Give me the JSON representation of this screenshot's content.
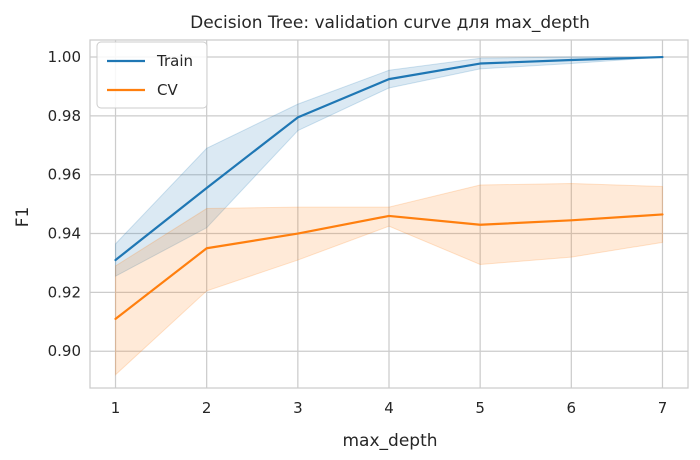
{
  "chart_data": {
    "type": "line",
    "title": "Decision Tree: validation curve для max_depth",
    "xlabel": "max_depth",
    "ylabel": "F1",
    "x": [
      1,
      2,
      3,
      4,
      5,
      6,
      7
    ],
    "xlim": [
      0.72,
      7.28
    ],
    "ylim": [
      0.8875,
      1.0058
    ],
    "xticks": [
      1,
      2,
      3,
      4,
      5,
      6,
      7
    ],
    "yticks": [
      0.9,
      0.92,
      0.94,
      0.96,
      0.98,
      1.0
    ],
    "ytick_labels": [
      "0.90",
      "0.92",
      "0.94",
      "0.96",
      "0.98",
      "1.00"
    ],
    "grid": true,
    "legend_position": "upper-left",
    "series": [
      {
        "name": "Train",
        "color": "#1f77b4",
        "values": [
          0.931,
          0.9555,
          0.9795,
          0.9925,
          0.9978,
          0.999,
          1.0
        ],
        "band_lower": [
          0.9255,
          0.942,
          0.975,
          0.9895,
          0.996,
          0.9978,
          1.0
        ],
        "band_upper": [
          0.9365,
          0.969,
          0.984,
          0.9955,
          0.9996,
          1.0,
          1.0
        ]
      },
      {
        "name": "CV",
        "color": "#ff7f0e",
        "values": [
          0.911,
          0.935,
          0.94,
          0.946,
          0.943,
          0.9445,
          0.9465
        ],
        "band_lower": [
          0.892,
          0.9205,
          0.931,
          0.9425,
          0.9295,
          0.932,
          0.937
        ],
        "band_upper": [
          0.929,
          0.9485,
          0.949,
          0.949,
          0.9565,
          0.957,
          0.956
        ]
      }
    ]
  }
}
